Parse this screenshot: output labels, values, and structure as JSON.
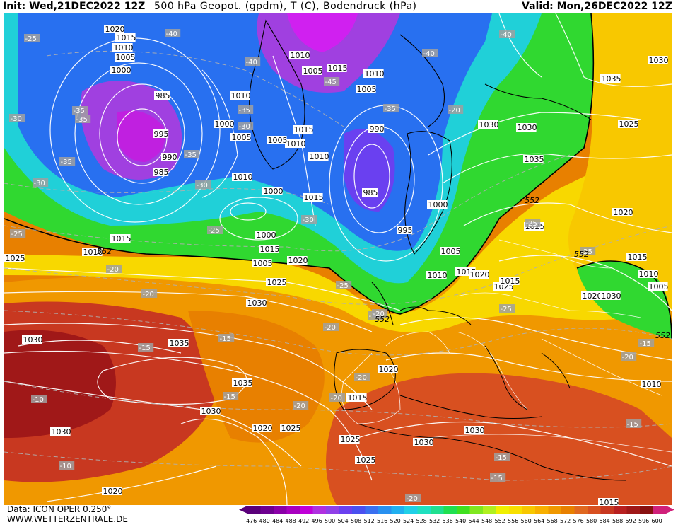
{
  "header": {
    "init_text": "Init: Wed,21DEC2022 12Z",
    "title": "500 hPa Geopot. (gpdm), T (C), Bodendruck (hPa)",
    "valid_text": "Valid: Mon,26DEC2022 12Z"
  },
  "footer": {
    "data_source": "Data: ICON OPER 0.250°",
    "website": "WWW.WETTERZENTRALE.DE"
  },
  "scale": {
    "ticks": [
      "476",
      "480",
      "484",
      "488",
      "492",
      "496",
      "500",
      "504",
      "508",
      "512",
      "516",
      "520",
      "524",
      "528",
      "532",
      "536",
      "540",
      "544",
      "548",
      "552",
      "556",
      "560",
      "564",
      "568",
      "572",
      "576",
      "580",
      "584",
      "588",
      "592",
      "596",
      "600"
    ],
    "colors": [
      "#5a007a",
      "#6e0090",
      "#8a00a8",
      "#a800c0",
      "#c000d8",
      "#b030e0",
      "#9040e8",
      "#6a40f0",
      "#4a50f0",
      "#3a70f0",
      "#2890f0",
      "#20b0f0",
      "#20d0e8",
      "#20e0c0",
      "#20e090",
      "#20e050",
      "#40e020",
      "#80e820",
      "#b0f020",
      "#f0f000",
      "#f8e000",
      "#f8c800",
      "#f8b000",
      "#f09800",
      "#e88000",
      "#e06820",
      "#d85020",
      "#c83820",
      "#b82020",
      "#a01818",
      "#881010",
      "#d0207a"
    ]
  },
  "map": {
    "color_fills": {
      "sea_yellow": "#f8d800",
      "orange": "#f0a020",
      "dark_orange": "#e06820",
      "red": "#c83820",
      "dark_red": "#a01818",
      "green": "#30d830",
      "cyan": "#20d0d8",
      "blue": "#2870f0",
      "purple": "#a040e0",
      "magenta": "#d020f0"
    },
    "isobar_labels": [
      "1020",
      "1015",
      "1010",
      "1005",
      "1000",
      "985",
      "995",
      "990",
      "985",
      "1010",
      "1015",
      "1010",
      "1005",
      "1000",
      "1005",
      "1010",
      "1015",
      "1010",
      "1005",
      "1000",
      "1010",
      "1015",
      "1010",
      "1005",
      "1015",
      "1010",
      "1005",
      "1000",
      "1015",
      "1020",
      "1025",
      "1030",
      "1035",
      "990",
      "985",
      "995",
      "1000",
      "1005",
      "1010",
      "1015",
      "1020",
      "1025",
      "1030",
      "1035",
      "1030",
      "1025",
      "1020",
      "1015",
      "1010",
      "1005",
      "1030",
      "1035",
      "1030",
      "1025",
      "1020",
      "1015",
      "1030",
      "1030",
      "1025",
      "1020",
      "1015",
      "1010",
      "1035",
      "1030",
      "1025",
      "1020",
      "1015",
      "1030",
      "1020",
      "1025",
      "1030",
      "1025"
    ],
    "temp_labels": [
      "-25",
      "-40",
      "-40",
      "-35",
      "-30",
      "-35",
      "-35",
      "-30",
      "-35",
      "-40",
      "-40",
      "-45",
      "-35",
      "-30",
      "-25",
      "-30",
      "-35",
      "-30",
      "-25",
      "-20",
      "-20",
      "-25",
      "-30",
      "-20",
      "-15",
      "-15",
      "-20",
      "-20",
      "-15",
      "-20",
      "-20",
      "-25",
      "-25",
      "-20",
      "-15",
      "-15",
      "-10",
      "-10",
      "-15",
      "-15",
      "-20",
      "-25",
      "-20"
    ],
    "geopot_labels": [
      "552",
      "552",
      "552",
      "552",
      "552"
    ]
  }
}
